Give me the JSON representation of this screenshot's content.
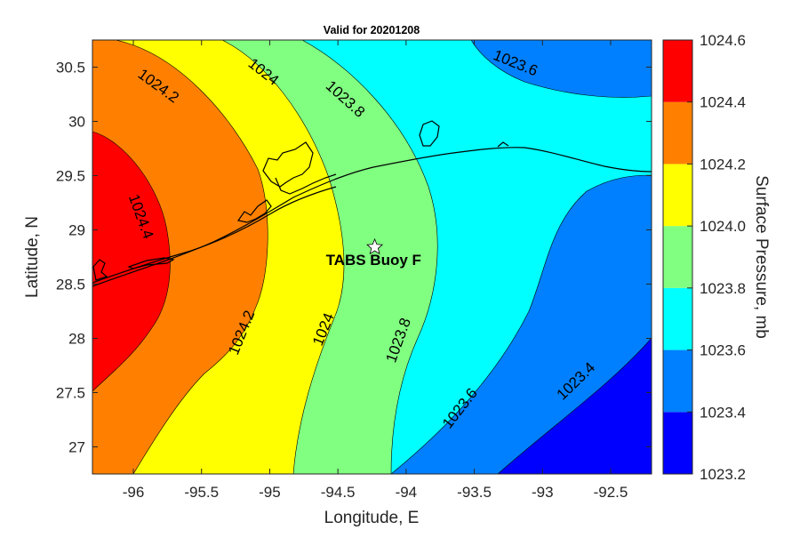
{
  "chart_data": {
    "type": "filled-contour",
    "title": "Valid for 20201208",
    "xlabel": "Longitude, E",
    "ylabel": "Latitude, N",
    "xlim": [
      -96.3,
      -92.2
    ],
    "ylim": [
      26.75,
      30.75
    ],
    "x_ticks": [
      -96,
      -95.5,
      -95,
      -94.5,
      -94,
      -93.5,
      -93,
      -92.5
    ],
    "x_tick_labels": [
      "-96",
      "-95.5",
      "-95",
      "-94.5",
      "-94",
      "-93.5",
      "-93",
      "-92.5"
    ],
    "y_ticks": [
      27,
      27.5,
      28,
      28.5,
      29,
      29.5,
      30,
      30.5
    ],
    "y_tick_labels": [
      "27",
      "27.5",
      "28",
      "28.5",
      "29",
      "29.5",
      "30",
      "30.5"
    ],
    "colorbar": {
      "label": "Surface Pressure, mb",
      "levels": [
        1023.2,
        1023.4,
        1023.6,
        1023.8,
        1024.0,
        1024.2,
        1024.4,
        1024.6
      ],
      "tick_labels": [
        "1023.2",
        "1023.4",
        "1023.6",
        "1023.8",
        "1024.0",
        "1024.2",
        "1024.4",
        "1024.6"
      ],
      "colors": [
        "#0000ff",
        "#0080ff",
        "#00ffff",
        "#80ff80",
        "#ffff00",
        "#ff8000",
        "#ff0000"
      ]
    },
    "contour_labels": [
      {
        "text": "1024.2",
        "lon": -95.82,
        "lat": 30.32
      },
      {
        "text": "1024",
        "lon": -95.05,
        "lat": 30.45
      },
      {
        "text": "1023.8",
        "lon": -94.45,
        "lat": 30.2
      },
      {
        "text": "1023.6",
        "lon": -93.2,
        "lat": 30.53
      },
      {
        "text": "1024.4",
        "lon": -95.95,
        "lat": 29.12
      },
      {
        "text": "1024.2",
        "lon": -95.2,
        "lat": 28.05
      },
      {
        "text": "1024",
        "lon": -94.6,
        "lat": 28.08
      },
      {
        "text": "1023.8",
        "lon": -94.05,
        "lat": 27.98
      },
      {
        "text": "1023.6",
        "lon": -93.6,
        "lat": 27.35
      },
      {
        "text": "1023.4",
        "lon": -92.75,
        "lat": 27.6
      }
    ],
    "markers": [
      {
        "name": "TABS Buoy F",
        "lon": -94.23,
        "lat": 28.84,
        "symbol": "star"
      }
    ]
  }
}
